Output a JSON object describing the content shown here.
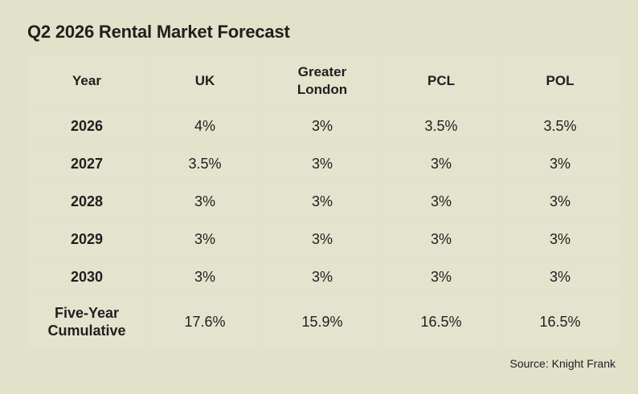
{
  "title": "Q2 2026 Rental Market Forecast",
  "source": "Source: Knight Frank",
  "chart_data": {
    "type": "table",
    "title": "Q2 2026 Rental Market Forecast",
    "columns": [
      "Year",
      "UK",
      "Greater London",
      "PCL",
      "POL"
    ],
    "column_labels": [
      "Year",
      "UK",
      "Greater\nLondon",
      "PCL",
      "POL"
    ],
    "rows": [
      {
        "label": "2026",
        "values": [
          "4%",
          "3%",
          "3.5%",
          "3.5%"
        ]
      },
      {
        "label": "2027",
        "values": [
          "3.5%",
          "3%",
          "3%",
          "3%"
        ]
      },
      {
        "label": "2028",
        "values": [
          "3%",
          "3%",
          "3%",
          "3%"
        ]
      },
      {
        "label": "2029",
        "values": [
          "3%",
          "3%",
          "3%",
          "3%"
        ]
      },
      {
        "label": "2030",
        "values": [
          "3%",
          "3%",
          "3%",
          "3%"
        ]
      },
      {
        "label": "Five-Year\nCumulative",
        "values": [
          "17.6%",
          "15.9%",
          "16.5%",
          "16.5%"
        ]
      }
    ]
  }
}
